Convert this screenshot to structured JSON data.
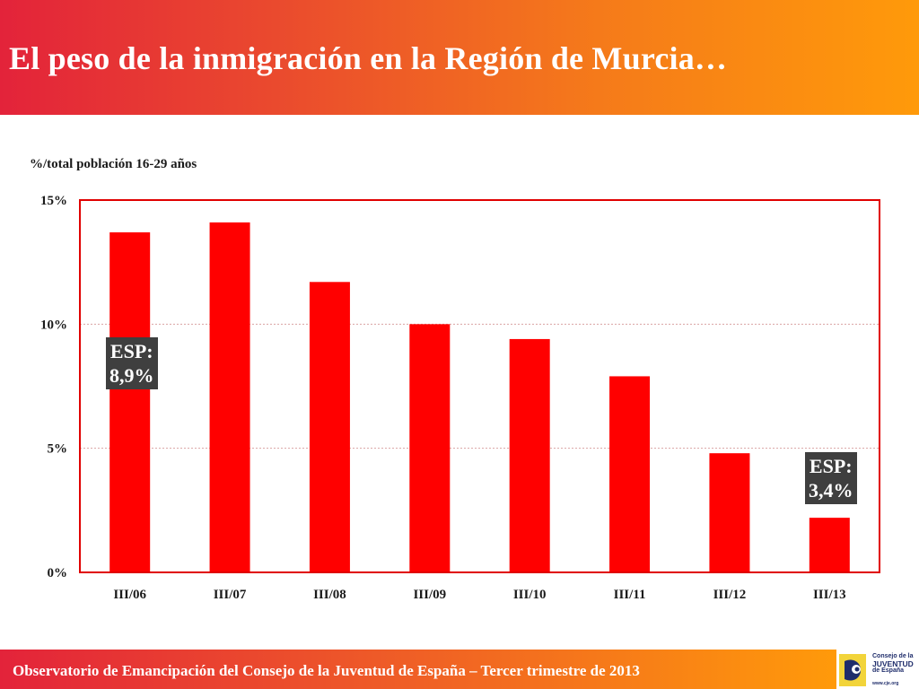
{
  "header": {
    "title": "El peso de la inmigración en la Región de Murcia…"
  },
  "chart_data": {
    "type": "bar",
    "title": "El peso de la inmigración en la Región de Murcia…",
    "ylabel": "%/total población 16-29 años",
    "xlabel": "",
    "categories": [
      "III/06",
      "III/07",
      "III/08",
      "III/09",
      "III/10",
      "III/11",
      "III/12",
      "III/13"
    ],
    "values": [
      13.7,
      14.1,
      11.7,
      10.0,
      9.4,
      7.9,
      4.8,
      2.2
    ],
    "unit": "%",
    "ylim": [
      0,
      15
    ],
    "yticks": [
      0,
      5,
      10,
      15
    ],
    "ytick_labels": [
      "0%",
      "5%",
      "10%",
      "15%"
    ],
    "grid": true,
    "bar_color": "#ff0000",
    "frame_color": "#e00000",
    "annotations": [
      {
        "category": "III/06",
        "lines": [
          "ESP:",
          "8,9%"
        ]
      },
      {
        "category": "III/13",
        "lines": [
          "ESP:",
          "3,4%"
        ]
      }
    ]
  },
  "footer": {
    "text": "Observatorio de Emancipación del Consejo de la Juventud de España – Tercer trimestre de 2013",
    "logo_lines": [
      "Consejo de la",
      "JUVENTUD",
      "de España"
    ],
    "logo_url": "www.cje.org"
  }
}
